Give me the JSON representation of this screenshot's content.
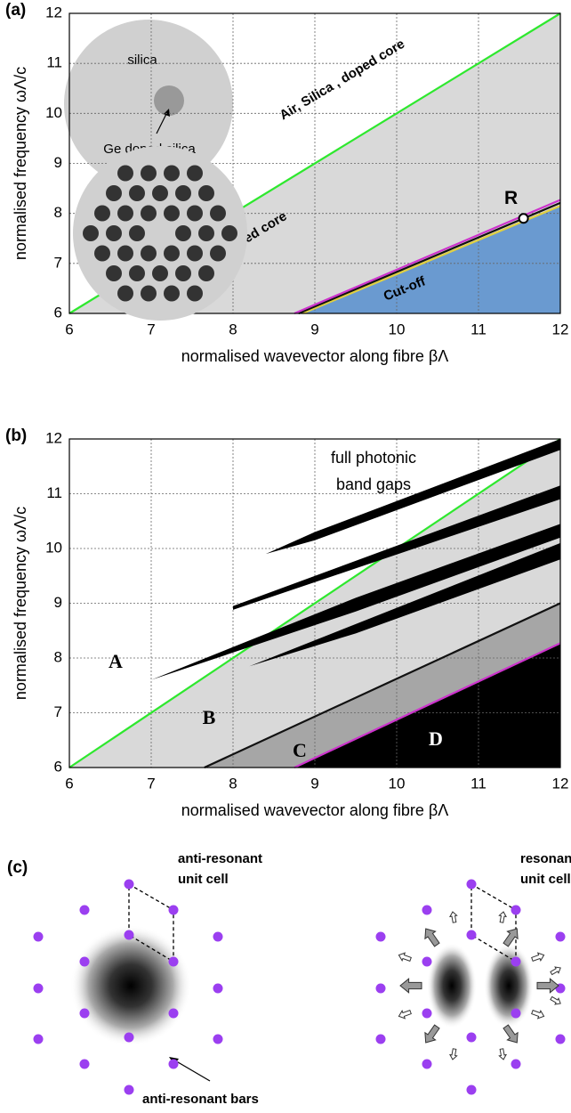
{
  "chart_data": [
    {
      "type": "line",
      "panel_label": "(a)",
      "xlabel": "normalised wavevector along fibre βΛ",
      "ylabel": "normalised frequency ωΛ/c",
      "xlim": [
        6,
        12
      ],
      "ylim": [
        6,
        12
      ],
      "xticks": [
        6,
        7,
        8,
        9,
        10,
        11,
        12
      ],
      "yticks": [
        6,
        7,
        8,
        9,
        10,
        11,
        12
      ],
      "grid": true,
      "series": [
        {
          "color": "#2ee82e",
          "fill": "#d9d9d9",
          "x": [
            6,
            12
          ],
          "values": [
            6,
            12
          ]
        },
        {
          "color": "#e0d040",
          "fill": "#6a9ad0",
          "x": [
            8.85,
            12
          ],
          "values": [
            6,
            8.15
          ]
        },
        {
          "color": "#111111",
          "x": [
            8.8,
            12
          ],
          "values": [
            6,
            8.21
          ]
        },
        {
          "color": "#cc33cc",
          "x": [
            8.75,
            12
          ],
          "values": [
            6,
            8.27
          ]
        }
      ],
      "points": [
        {
          "label": "R",
          "x": 11.55,
          "y": 7.9
        }
      ],
      "annotations": [
        "Air, Silica , doped core",
        "Silica and doped core",
        "Cut-off"
      ],
      "inset": [
        "silica",
        "Ge doped silica"
      ]
    },
    {
      "type": "line",
      "panel_label": "(b)",
      "xlabel": "normalised wavevector along fibre βΛ",
      "ylabel": "normalised frequency ωΛ/c",
      "xlim": [
        6,
        12
      ],
      "ylim": [
        6,
        12
      ],
      "xticks": [
        6,
        7,
        8,
        9,
        10,
        11,
        12
      ],
      "yticks": [
        6,
        7,
        8,
        9,
        10,
        11,
        12
      ],
      "grid": true,
      "series": [
        {
          "color": "#2ee82e",
          "fill": "#d9d9d9",
          "x": [
            6,
            12
          ],
          "values": [
            6,
            12
          ]
        },
        {
          "color": "#111111",
          "fill": "#a6a6a6",
          "x": [
            7.65,
            12
          ],
          "values": [
            6,
            9
          ]
        },
        {
          "color": "#cc33cc",
          "fill": "#000000",
          "x": [
            8.75,
            12
          ],
          "values": [
            6,
            8.27
          ]
        }
      ],
      "gaps": [
        {
          "x": [
            8.4,
            9.0,
            12,
            12,
            9.0
          ],
          "values": [
            9.9,
            10.3,
            12.0,
            11.8,
            10.15
          ]
        },
        {
          "x": [
            8.0,
            12,
            12,
            8.0
          ],
          "values": [
            8.95,
            11.15,
            10.9,
            8.88
          ]
        },
        {
          "x": [
            7.0,
            9.5,
            12,
            12,
            9.5
          ],
          "values": [
            7.6,
            9.1,
            10.45,
            10.2,
            8.85
          ]
        },
        {
          "x": [
            8.2,
            12,
            12,
            9.5
          ],
          "values": [
            7.85,
            10.1,
            9.8,
            8.45
          ]
        }
      ],
      "annotations": [
        "full photonic",
        "band gaps"
      ],
      "regions": [
        "A",
        "B",
        "C",
        "D"
      ]
    }
  ],
  "panel_c": {
    "label": "(c)",
    "left": {
      "title_lines": [
        "anti-resonant",
        "unit cell"
      ],
      "bars_label": "anti-resonant bars"
    },
    "right": {
      "title_lines": [
        "resonant",
        "unit cell"
      ]
    }
  }
}
